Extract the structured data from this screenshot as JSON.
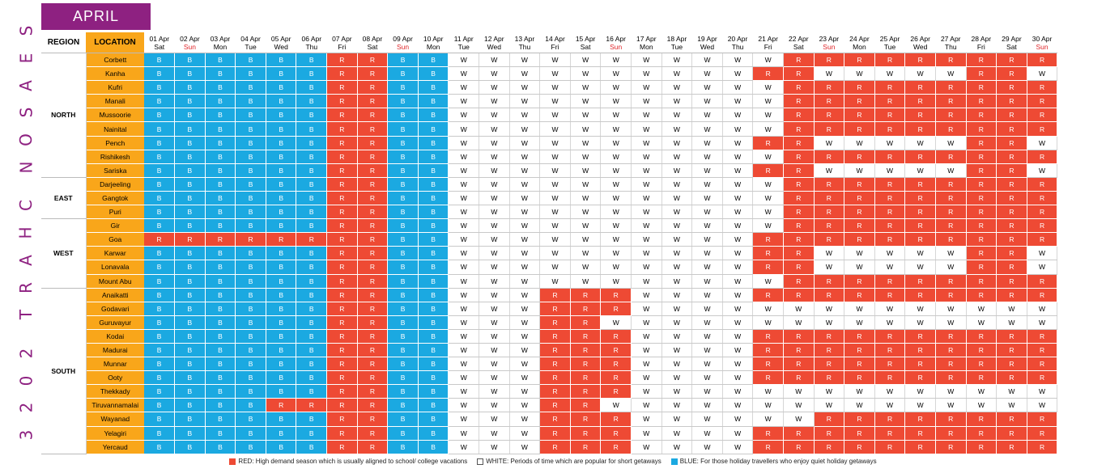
{
  "side_title": [
    "S",
    "E",
    "A",
    "S",
    "O",
    "N",
    " ",
    "C",
    "H",
    "A",
    "R",
    "T",
    " ",
    "2",
    "0",
    "2",
    "3"
  ],
  "month": "APRIL",
  "headers": {
    "region": "REGION",
    "location": "LOCATION"
  },
  "dates": [
    "01 Apr",
    "02 Apr",
    "03 Apr",
    "04 Apr",
    "05 Apr",
    "06 Apr",
    "07 Apr",
    "08 Apr",
    "09 Apr",
    "10 Apr",
    "11 Apr",
    "12 Apr",
    "13 Apr",
    "14 Apr",
    "15 Apr",
    "16 Apr",
    "17 Apr",
    "18 Apr",
    "19 Apr",
    "20 Apr",
    "21 Apr",
    "22 Apr",
    "23 Apr",
    "24 Apr",
    "25 Apr",
    "26 Apr",
    "27 Apr",
    "28 Apr",
    "29 Apr",
    "30 Apr"
  ],
  "days": [
    "Sat",
    "Sun",
    "Mon",
    "Tue",
    "Wed",
    "Thu",
    "Fri",
    "Sat",
    "Sun",
    "Mon",
    "Tue",
    "Wed",
    "Thu",
    "Fri",
    "Sat",
    "Sun",
    "Mon",
    "Tue",
    "Wed",
    "Thu",
    "Fri",
    "Sat",
    "Sun",
    "Mon",
    "Tue",
    "Wed",
    "Thu",
    "Fri",
    "Sat",
    "Sun"
  ],
  "regions": [
    {
      "name": "NORTH",
      "locations": [
        {
          "name": "Corbett",
          "cells": "BBBBBBRRBBWWWWWWWWWWWRRRRRRRRR"
        },
        {
          "name": "Kanha",
          "cells": "BBBBBBRRBBWWWWWWWWWWRRWWWWWRRW"
        },
        {
          "name": "Kufri",
          "cells": "BBBBBBRRBBWWWWWWWWWWWRRRRRRRRR"
        },
        {
          "name": "Manali",
          "cells": "BBBBBBRRBBWWWWWWWWWWWRRRRRRRRR"
        },
        {
          "name": "Mussoorie",
          "cells": "BBBBBBRRBBWWWWWWWWWWWRRRRRRRRR"
        },
        {
          "name": "Nainital",
          "cells": "BBBBBBRRBBWWWWWWWWWWWRRRRRRRRR"
        },
        {
          "name": "Pench",
          "cells": "BBBBBBRRBBWWWWWWWWWWRRWWWWWRRW"
        },
        {
          "name": "Rishikesh",
          "cells": "BBBBBBRRBBWWWWWWWWWWWRRRRRRRRR"
        },
        {
          "name": "Sariska",
          "cells": "BBBBBBRRBBWWWWWWWWWWRRWWWWWRRW"
        }
      ]
    },
    {
      "name": "EAST",
      "locations": [
        {
          "name": "Darjeeling",
          "cells": "BBBBBBRRBBWWWWWWWWWWWRRRRRRRRR"
        },
        {
          "name": "Gangtok",
          "cells": "BBBBBBRRBBWWWWWWWWWWWRRRRRRRRR"
        },
        {
          "name": "Puri",
          "cells": "BBBBBBRRBBWWWWWWWWWWWRRRRRRRRR"
        }
      ]
    },
    {
      "name": "WEST",
      "locations": [
        {
          "name": "Gir",
          "cells": "BBBBBBRRBBWWWWWWWWWWWRRRRRRRRR"
        },
        {
          "name": "Goa",
          "cells": "RRRRRRRRBBWWWWWWWWWWRRRRRRRRRR"
        },
        {
          "name": "Karwar",
          "cells": "BBBBBBRRBBWWWWWWWWWWRRWWWWWRRW"
        },
        {
          "name": "Lonavala",
          "cells": "BBBBBBRRBBWWWWWWWWWWRRWWWWWRRW"
        },
        {
          "name": "Mount Abu",
          "cells": "BBBBBBRRBBWWWWWWWWWWWRRRRRRRRR"
        }
      ]
    },
    {
      "name": "SOUTH",
      "locations": [
        {
          "name": "Anaikatti",
          "cells": "BBBBBBRRBBWWWRRRWWWWRRRRRRRRRR"
        },
        {
          "name": "Godavari",
          "cells": "BBBBBBRRBBWWWRRRWWWWWWWWWWWWWW"
        },
        {
          "name": "Guruvayur",
          "cells": "BBBBBBRRBBWWWRRWWWWWWWWWWWWWWW"
        },
        {
          "name": "Kodai",
          "cells": "BBBBBBRRBBWWWRRRWWWWRRRRRRRRRR"
        },
        {
          "name": "Madurai",
          "cells": "BBBBBBRRBBWWWRRRWWWWRRRRRRRRRR"
        },
        {
          "name": "Munnar",
          "cells": "BBBBBBRRBBWWWRRRWWWWRRRRRRRRRR"
        },
        {
          "name": "Ooty",
          "cells": "BBBBBBRRBBWWWRRRWWWWRRRRRRRRRR"
        },
        {
          "name": "Thekkady",
          "cells": "BBBBBBRRBBWWWRRRWWWWWWWWWWWWWW"
        },
        {
          "name": "Tiruvannamalai",
          "cells": "BBBBRRRRBBWWWRRWWWWWWWWWWWWWWW"
        },
        {
          "name": "Wayanad",
          "cells": "BBBBBBRRBBWWWRRRWWWWWWRRRRRRRR"
        },
        {
          "name": "Yelagiri",
          "cells": "BBBBBBRRBBWWWRRRWWWWRRRRRRRRRR"
        },
        {
          "name": "Yercaud",
          "cells": "BBBBBBRRBBWWWRRRWWWWRRRRRRRRRR"
        }
      ]
    }
  ],
  "legend": [
    {
      "code": "R",
      "color": "#ee4a34",
      "text": "RED: High demand season which is usually aligned to school/ college vacations"
    },
    {
      "code": "W",
      "color": "#ffffff",
      "text": "WHITE: Periods of time which are popular for short getaways"
    },
    {
      "code": "B",
      "color": "#1ba9e1",
      "text": "BLUE: For those holiday travellers who enjoy quiet holiday getaways"
    }
  ]
}
